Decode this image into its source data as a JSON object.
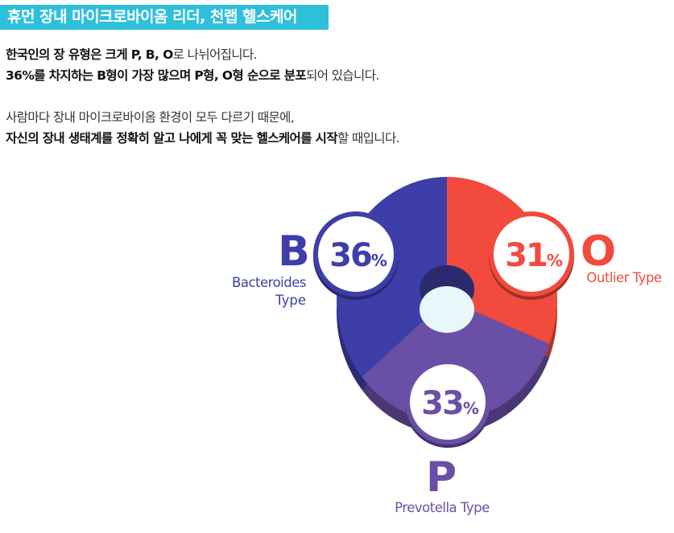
{
  "header": {
    "title": "휴먼 장내 마이크로바이옴 리더, 천랩 헬스케어"
  },
  "intro": {
    "line1_bold": "한국인의 장 유형은 크게 P, B, O",
    "line1_rest": "로 나뉘어집니다.",
    "line2_bold": "36%를 차지하는 B형이 가장 많으며 P형, O형 순으로 분포",
    "line2_rest": "되어 있습니다."
  },
  "desc": {
    "line1": "사람마다 장내 마이크로바이옴 환경이 모두 다르기 때문에,",
    "line2_bold": "자신의 장내 생태계를 정확히 알고 나에게 꼭 맞는 헬스케어를 시작",
    "line2_rest": "할 때입니다."
  },
  "chart_data": {
    "type": "pie",
    "slices": [
      {
        "letter": "B",
        "name": "Bacteroides",
        "name2": "Type",
        "value": 36,
        "value_label": "36",
        "unit": "%",
        "color": "#3d3ea8"
      },
      {
        "letter": "O",
        "name": "Outlier Type",
        "name2": "",
        "value": 31,
        "value_label": "31",
        "unit": "%",
        "color": "#f24a3c"
      },
      {
        "letter": "P",
        "name": "Prevotella Type",
        "name2": "",
        "value": 33,
        "value_label": "33",
        "unit": "%",
        "color": "#6a4fa6"
      }
    ]
  }
}
